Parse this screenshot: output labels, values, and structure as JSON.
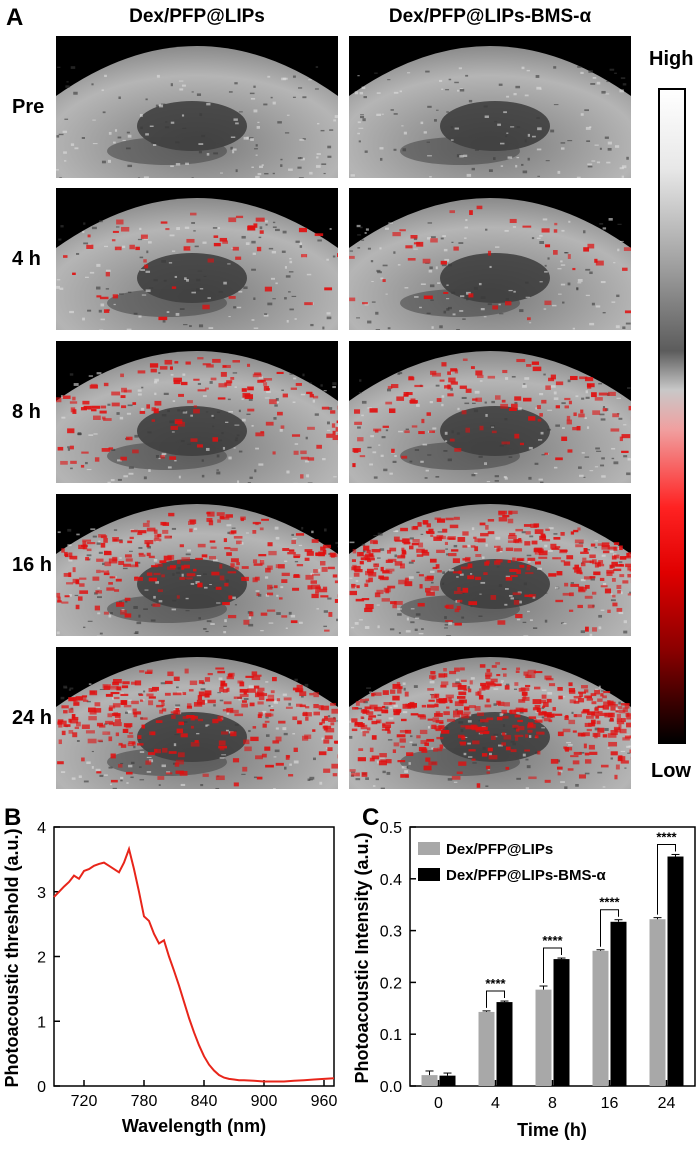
{
  "panel_a": {
    "letter": "A",
    "columns": [
      "Dex/PFP@LIPs",
      "Dex/PFP@LIPs-BMS-α"
    ],
    "rows": [
      "Pre",
      "4 h",
      "8 h",
      "16 h",
      "24 h"
    ],
    "signal_levels": [
      [
        0.0,
        0.0
      ],
      [
        0.12,
        0.1
      ],
      [
        0.32,
        0.28
      ],
      [
        0.55,
        0.75
      ],
      [
        0.7,
        0.95
      ]
    ],
    "colorbar": {
      "high": "High",
      "low": "Low"
    },
    "colors": {
      "signal": "#e01010",
      "tissue": "#b8b8b8",
      "background": "#000000"
    }
  },
  "chart_data": [
    {
      "panel": "B",
      "type": "line",
      "xlabel": "Wavelength (nm)",
      "ylabel": "Photoacoustic threshold (a.u.)",
      "xlim": [
        690,
        970
      ],
      "ylim": [
        0,
        4
      ],
      "xticks": [
        720,
        780,
        840,
        900,
        960
      ],
      "yticks": [
        0,
        1,
        2,
        3,
        4
      ],
      "color": "#e8251a",
      "x": [
        690,
        695,
        700,
        705,
        710,
        715,
        720,
        725,
        730,
        735,
        740,
        745,
        750,
        755,
        760,
        765,
        770,
        775,
        780,
        785,
        790,
        795,
        800,
        805,
        810,
        815,
        820,
        825,
        830,
        835,
        840,
        845,
        850,
        855,
        860,
        865,
        870,
        875,
        880,
        890,
        900,
        910,
        920,
        930,
        940,
        950,
        960,
        970
      ],
      "y": [
        2.92,
        3.0,
        3.08,
        3.15,
        3.25,
        3.2,
        3.32,
        3.35,
        3.4,
        3.43,
        3.45,
        3.4,
        3.35,
        3.3,
        3.45,
        3.66,
        3.35,
        3.0,
        2.62,
        2.55,
        2.35,
        2.2,
        2.25,
        2.0,
        1.78,
        1.55,
        1.3,
        1.05,
        0.83,
        0.63,
        0.46,
        0.33,
        0.24,
        0.17,
        0.13,
        0.11,
        0.1,
        0.09,
        0.09,
        0.08,
        0.07,
        0.07,
        0.07,
        0.08,
        0.09,
        0.1,
        0.11,
        0.12
      ]
    },
    {
      "panel": "C",
      "type": "bar",
      "xlabel": "Time (h)",
      "ylabel": "Photoacoustic Intensity (a.u.)",
      "ylim": [
        0,
        0.5
      ],
      "yticks": [
        0.0,
        0.1,
        0.2,
        0.3,
        0.4,
        0.5
      ],
      "categories": [
        "0",
        "4",
        "8",
        "16",
        "24"
      ],
      "series": [
        {
          "name": "Dex/PFP@LIPs",
          "color": "#a8a8a8",
          "values": [
            0.021,
            0.143,
            0.186,
            0.261,
            0.322
          ],
          "errors": [
            0.008,
            0.002,
            0.007,
            0.002,
            0.003
          ]
        },
        {
          "name": "Dex/PFP@LIPs-BMS-α",
          "color": "#000000",
          "values": [
            0.02,
            0.162,
            0.245,
            0.317,
            0.443
          ],
          "errors": [
            0.005,
            0.002,
            0.002,
            0.004,
            0.004
          ]
        }
      ],
      "significance": [
        "****",
        "****",
        "****",
        "****"
      ],
      "legend_position": "top-left"
    }
  ]
}
